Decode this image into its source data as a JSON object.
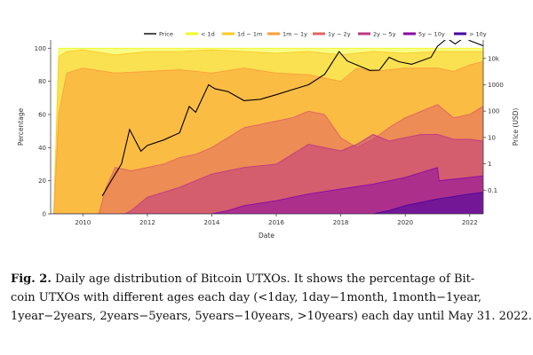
{
  "caption": {
    "label": "Fig. 2.",
    "line1": "Daily age distribution of Bitcoin UTXOs. It shows the percentage of Bit-",
    "line2": "coin UTXOs with different ages each day (<1day, 1day−1month, 1month−1year,",
    "line3": "1year−2years, 2years−5years, 5years−10years, >10years) each day until May 31. 2022."
  },
  "chart_data": {
    "type": "area",
    "title": "",
    "xlabel": "Date",
    "ylabel": "Percentage",
    "y2label": "Price (USD)",
    "xlim": [
      2009,
      2022.42
    ],
    "ylim": [
      0,
      105
    ],
    "x_ticks": [
      "2010",
      "2012",
      "2014",
      "2016",
      "2018",
      "2020",
      "2022"
    ],
    "y_ticks": [
      "0",
      "20",
      "40",
      "60",
      "80",
      "100"
    ],
    "y2_ticks": [
      "0.1",
      "1",
      "10",
      "100",
      "1000",
      "10k"
    ],
    "y2lim_log10": [
      -1.9,
      4.7
    ],
    "legend": [
      "Price",
      "< 1d",
      "1d ~ 1m",
      "1m ~ 1y",
      "1y ~ 2y",
      "2y ~ 5y",
      "5y ~ 10y",
      "> 10y"
    ],
    "colors": {
      "price": "#000000",
      "lt1d": "#f0f921",
      "d1_m1": "#fdca26",
      "m1_y1": "#fb9f3a",
      "y1_y2": "#e16462",
      "y2_y5": "#bf3984",
      "y5_y10": "#8b0aa5",
      "gt10y": "#47039f"
    },
    "series": [
      {
        "name": "> 10y",
        "x": [
          2009,
          2019.0,
          2019.5,
          2020,
          2021,
          2022,
          2022.42
        ],
        "values": [
          0,
          0,
          2,
          5,
          9,
          12,
          13
        ]
      },
      {
        "name": "5y ~ 10y",
        "x": [
          2009,
          2014.0,
          2014.5,
          2015,
          2016,
          2017,
          2018,
          2019,
          2020,
          2021,
          2021.05,
          2021.5,
          2022,
          2022.42
        ],
        "values": [
          0,
          0,
          2,
          5,
          8,
          12,
          15,
          18,
          22,
          28,
          20,
          21,
          22,
          23
        ]
      },
      {
        "name": "2y ~ 5y",
        "x": [
          2009,
          2011.3,
          2011.5,
          2012,
          2013,
          2014,
          2015,
          2016,
          2016.5,
          2017,
          2017.5,
          2018,
          2018.5,
          2019,
          2019.5,
          2020,
          2020.5,
          2021,
          2021.5,
          2022,
          2022.42
        ],
        "values": [
          0,
          0,
          2,
          10,
          16,
          24,
          28,
          30,
          36,
          42,
          40,
          38,
          42,
          48,
          44,
          46,
          48,
          48,
          45,
          45,
          44
        ]
      },
      {
        "name": "1y ~ 2y",
        "x": [
          2009,
          2010.5,
          2010.7,
          2011,
          2011.5,
          2012,
          2012.5,
          2013,
          2013.5,
          2014,
          2014.5,
          2015,
          2016,
          2016.5,
          2017,
          2017.5,
          2018,
          2018.5,
          2019,
          2019.5,
          2020,
          2020.5,
          2021,
          2021.5,
          2022,
          2022.42
        ],
        "values": [
          0,
          0,
          15,
          28,
          26,
          28,
          30,
          34,
          36,
          40,
          46,
          52,
          56,
          58,
          62,
          60,
          46,
          40,
          45,
          52,
          58,
          62,
          66,
          58,
          60,
          65
        ]
      },
      {
        "name": "1m ~ 1y",
        "x": [
          2009,
          2009.1,
          2009.25,
          2009.5,
          2010,
          2011,
          2012,
          2013,
          2014,
          2015,
          2016,
          2017,
          2018,
          2018.5,
          2019,
          2020,
          2021,
          2021.5,
          2022,
          2022.42
        ],
        "values": [
          0,
          0,
          60,
          85,
          88,
          85,
          86,
          87,
          85,
          88,
          85,
          84,
          80,
          88,
          86,
          88,
          88,
          86,
          90,
          92
        ]
      },
      {
        "name": "1d ~ 1m",
        "x": [
          2009,
          2009.1,
          2009.25,
          2009.5,
          2010,
          2011,
          2012,
          2013,
          2014,
          2015,
          2016,
          2017,
          2018,
          2019,
          2020,
          2021,
          2022,
          2022.42
        ],
        "values": [
          0,
          0,
          95,
          98,
          99,
          96,
          98,
          98,
          99,
          98,
          97,
          98,
          96,
          98,
          97,
          98,
          98,
          98
        ]
      },
      {
        "name": "< 1d",
        "x": [
          2009,
          2009.1,
          2009.25,
          2022.42
        ],
        "values": [
          0,
          0,
          100,
          100
        ]
      },
      {
        "name": "Price",
        "x": [
          2010.6,
          2010.9,
          2011.2,
          2011.45,
          2011.8,
          2012.0,
          2012.5,
          2013.0,
          2013.3,
          2013.5,
          2013.9,
          2014.1,
          2014.5,
          2015.0,
          2015.5,
          2016.0,
          2016.5,
          2017.0,
          2017.5,
          2017.95,
          2018.2,
          2018.9,
          2019.2,
          2019.5,
          2019.8,
          2020.2,
          2020.8,
          2021.0,
          2021.3,
          2021.55,
          2021.85,
          2022.0,
          2022.42
        ],
        "values": [
          0.06,
          0.25,
          1,
          20,
          3,
          5,
          8,
          15,
          150,
          90,
          1000,
          700,
          550,
          250,
          280,
          420,
          650,
          1000,
          2500,
          18000,
          8000,
          3500,
          3600,
          11000,
          7500,
          6000,
          11000,
          29000,
          58000,
          35000,
          65000,
          47000,
          30000
        ]
      }
    ]
  }
}
